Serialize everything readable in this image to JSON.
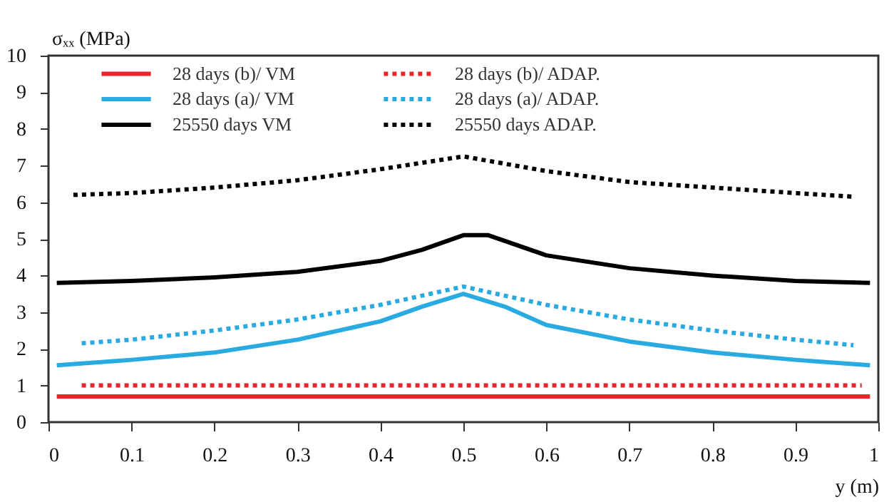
{
  "chart_data": {
    "type": "line",
    "xlabel": "y (m)",
    "ylabel": "σₓₓ (MPa)",
    "xlim": [
      0,
      1
    ],
    "xticks": [
      0,
      0.1,
      0.2,
      0.3,
      0.4,
      0.5,
      0.6,
      0.7,
      0.8,
      0.9,
      1
    ],
    "ylim": [
      0,
      10
    ],
    "yticks": [
      0,
      1,
      2,
      3,
      4,
      5,
      6,
      7,
      8,
      9,
      10
    ],
    "grid": false,
    "legend": "top",
    "marker": "none",
    "series": [
      {
        "name": "28 days (b)/ VM",
        "color": "#e8262a",
        "line_style": "solid",
        "x": [
          0.01,
          0.25,
          0.5,
          0.75,
          0.99
        ],
        "values": [
          0.7,
          0.7,
          0.7,
          0.7,
          0.7
        ]
      },
      {
        "name": "28 days (b)/ ADAP.",
        "color": "#e8262a",
        "line_style": "dotted",
        "x": [
          0.04,
          0.25,
          0.5,
          0.75,
          0.98
        ],
        "values": [
          1.0,
          1.0,
          1.0,
          1.0,
          1.0
        ]
      },
      {
        "name": "28 days (a)/ VM",
        "color": "#29abe2",
        "line_style": "solid",
        "x": [
          0.01,
          0.1,
          0.2,
          0.3,
          0.4,
          0.45,
          0.5,
          0.55,
          0.6,
          0.7,
          0.8,
          0.9,
          0.99
        ],
        "values": [
          1.55,
          1.7,
          1.9,
          2.25,
          2.75,
          3.15,
          3.5,
          3.15,
          2.65,
          2.2,
          1.9,
          1.7,
          1.55
        ]
      },
      {
        "name": "28 days (a)/ ADAP.",
        "color": "#29abe2",
        "line_style": "dotted",
        "x": [
          0.04,
          0.1,
          0.2,
          0.3,
          0.4,
          0.5,
          0.6,
          0.7,
          0.8,
          0.9,
          0.97
        ],
        "values": [
          2.15,
          2.25,
          2.5,
          2.8,
          3.2,
          3.7,
          3.2,
          2.8,
          2.5,
          2.25,
          2.1
        ]
      },
      {
        "name": "25550 days VM",
        "color": "#000000",
        "line_style": "solid",
        "x": [
          0.01,
          0.1,
          0.2,
          0.3,
          0.4,
          0.45,
          0.5,
          0.53,
          0.6,
          0.7,
          0.8,
          0.9,
          0.99
        ],
        "values": [
          3.8,
          3.85,
          3.95,
          4.1,
          4.4,
          4.7,
          5.1,
          5.1,
          4.55,
          4.2,
          4.0,
          3.85,
          3.8
        ]
      },
      {
        "name": "25550 days ADAP.",
        "color": "#000000",
        "line_style": "dotted",
        "x": [
          0.03,
          0.1,
          0.2,
          0.3,
          0.4,
          0.5,
          0.6,
          0.7,
          0.8,
          0.9,
          0.97
        ],
        "values": [
          6.2,
          6.25,
          6.4,
          6.6,
          6.9,
          7.25,
          6.85,
          6.55,
          6.4,
          6.25,
          6.15
        ]
      }
    ]
  }
}
